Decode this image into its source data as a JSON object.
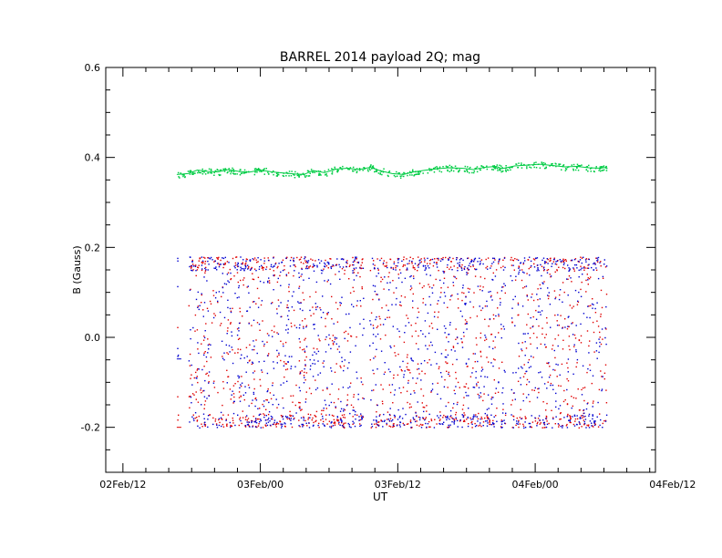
{
  "chart_data": {
    "type": "scatter",
    "title": "BARREL 2014 payload 2Q; mag",
    "xlabel": "UT",
    "ylabel": "B (Gauss)",
    "x_unit": "hours",
    "xlim": [
      -13.5,
      34.5
    ],
    "ylim": [
      -0.3,
      0.6
    ],
    "x_tick_values": [
      -12,
      0,
      12,
      24,
      36
    ],
    "x_tick_labels": [
      "02Feb/12",
      "03Feb/00",
      "03Feb/12",
      "04Feb/00",
      "04Feb/12"
    ],
    "y_tick_values": [
      -0.2,
      0.0,
      0.2,
      0.4,
      0.6
    ],
    "y_tick_labels": [
      "-0.2",
      "0.0",
      "0.2",
      "0.4",
      "0.6"
    ],
    "grid": false,
    "legend": "none",
    "data_range_x": [
      -7.3,
      30.2
    ],
    "series": [
      {
        "color": "#00cc44",
        "kind": "line",
        "points": [
          [
            -7.3,
            0.362
          ],
          [
            -6.3,
            0.364
          ],
          [
            -5.5,
            0.372
          ],
          [
            -4.6,
            0.369
          ],
          [
            -3.7,
            0.368
          ],
          [
            -2.8,
            0.373
          ],
          [
            -1.9,
            0.369
          ],
          [
            -1.0,
            0.367
          ],
          [
            0.0,
            0.372
          ],
          [
            1.0,
            0.368
          ],
          [
            2.1,
            0.365
          ],
          [
            3.1,
            0.363
          ],
          [
            3.8,
            0.362
          ],
          [
            4.6,
            0.371
          ],
          [
            5.6,
            0.366
          ],
          [
            6.6,
            0.374
          ],
          [
            7.6,
            0.376
          ],
          [
            8.6,
            0.373
          ],
          [
            9.6,
            0.378
          ],
          [
            10.4,
            0.371
          ],
          [
            11.5,
            0.364
          ],
          [
            12.5,
            0.362
          ],
          [
            13.4,
            0.368
          ],
          [
            14.5,
            0.372
          ],
          [
            15.5,
            0.375
          ],
          [
            16.5,
            0.377
          ],
          [
            17.6,
            0.376
          ],
          [
            18.6,
            0.373
          ],
          [
            19.6,
            0.378
          ],
          [
            20.6,
            0.38
          ],
          [
            21.1,
            0.375
          ],
          [
            22.2,
            0.381
          ],
          [
            23.3,
            0.383
          ],
          [
            24.4,
            0.385
          ],
          [
            25.5,
            0.382
          ],
          [
            26.6,
            0.379
          ],
          [
            27.6,
            0.38
          ],
          [
            28.7,
            0.377
          ],
          [
            29.7,
            0.376
          ],
          [
            30.2,
            0.378
          ]
        ]
      },
      {
        "color": "#e00000",
        "kind": "scatter",
        "value_range": [
          -0.2,
          0.18
        ],
        "gaps": [
          [
            -7.2,
            -6.3
          ],
          [
            9.0,
            9.5
          ],
          [
            21.4,
            21.8
          ]
        ]
      },
      {
        "color": "#0000d0",
        "kind": "scatter",
        "value_range": [
          -0.2,
          0.18
        ],
        "gaps": [
          [
            -7.2,
            -6.3
          ],
          [
            9.0,
            9.5
          ],
          [
            21.4,
            21.8
          ]
        ]
      }
    ]
  }
}
